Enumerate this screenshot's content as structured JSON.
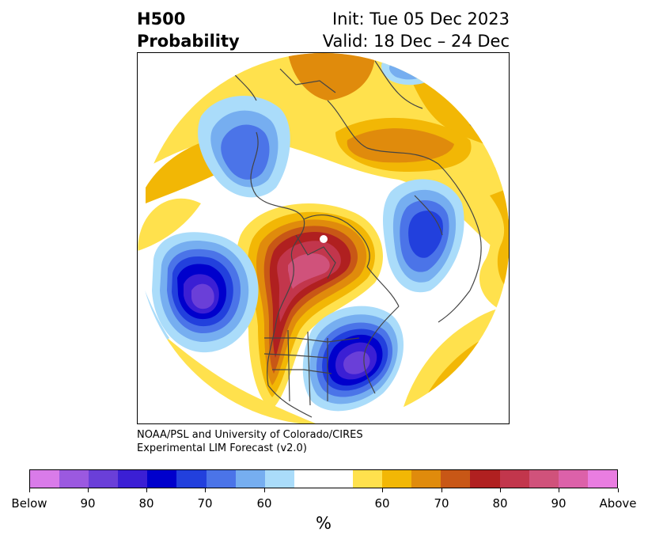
{
  "header": {
    "title_line1": "H500",
    "title_line2": "Probability",
    "init": "Init: Tue 05 Dec 2023",
    "valid": "Valid: 18 Dec – 24 Dec"
  },
  "credit": {
    "line1": "NOAA/PSL and University of Colorado/CIRES",
    "line2": "Experimental LIM Forecast (v2.0)"
  },
  "colorbar": {
    "colors": [
      "#d97be9",
      "#9b59e0",
      "#6a3fd8",
      "#3b1fd4",
      "#0000cc",
      "#2240dd",
      "#4b74e8",
      "#76aef0",
      "#aadcfa",
      "#ffffff",
      "#ffe14d",
      "#f2b705",
      "#e08b0c",
      "#c85716",
      "#b02020",
      "#c2364c",
      "#d0527b",
      "#dc61a9",
      "#e97de1"
    ],
    "tick_labels": [
      "Below",
      "90",
      "80",
      "70",
      "60",
      "60",
      "70",
      "80",
      "90",
      "Above"
    ],
    "units": "%"
  },
  "map": {
    "projection": "north-polar-stereographic",
    "palette": {
      "above_60": "#ffe14d",
      "above_65": "#f2b705",
      "above_70": "#e08b0c",
      "above_75": "#c85716",
      "above_80": "#b02020",
      "above_85": "#c2364c",
      "above_90": "#d0527b",
      "below_60": "#aadcfa",
      "below_65": "#76aef0",
      "below_70": "#4b74e8",
      "below_75": "#2240dd",
      "below_80": "#0000cc",
      "below_85": "#3b1fd4",
      "below_90": "#6a3fd8",
      "coastline": "#444444"
    }
  }
}
